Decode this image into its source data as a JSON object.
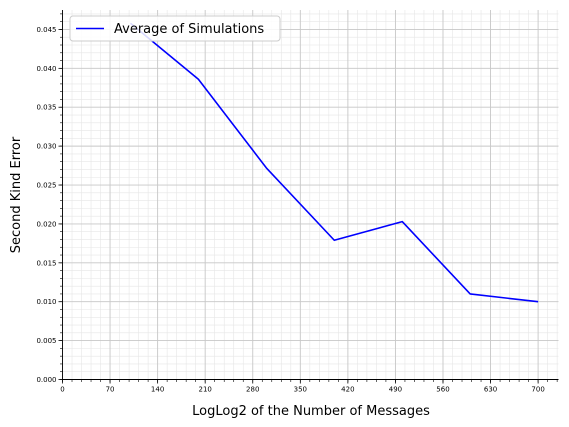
{
  "chart_data": {
    "type": "line",
    "xlabel": "LogLog2 of the Number of Messages",
    "ylabel": "Second Kind Error",
    "xlim": [
      0,
      730
    ],
    "ylim": [
      0,
      0.0475
    ],
    "x_ticks": [
      0,
      70,
      140,
      210,
      280,
      350,
      420,
      490,
      560,
      630,
      700
    ],
    "y_ticks": [
      "0.000",
      "0.005",
      "0.010",
      "0.015",
      "0.020",
      "0.025",
      "0.030",
      "0.035",
      "0.040",
      "0.045"
    ],
    "grid": true,
    "minor_grid": true,
    "legend_position": "top-left",
    "series": [
      {
        "name": "Average of Simulations",
        "color": "#0000ff",
        "x": [
          100,
          200,
          300,
          400,
          500,
          600,
          700
        ],
        "y": [
          0.0458,
          0.0386,
          0.0272,
          0.0179,
          0.0203,
          0.011,
          0.01
        ]
      }
    ]
  }
}
